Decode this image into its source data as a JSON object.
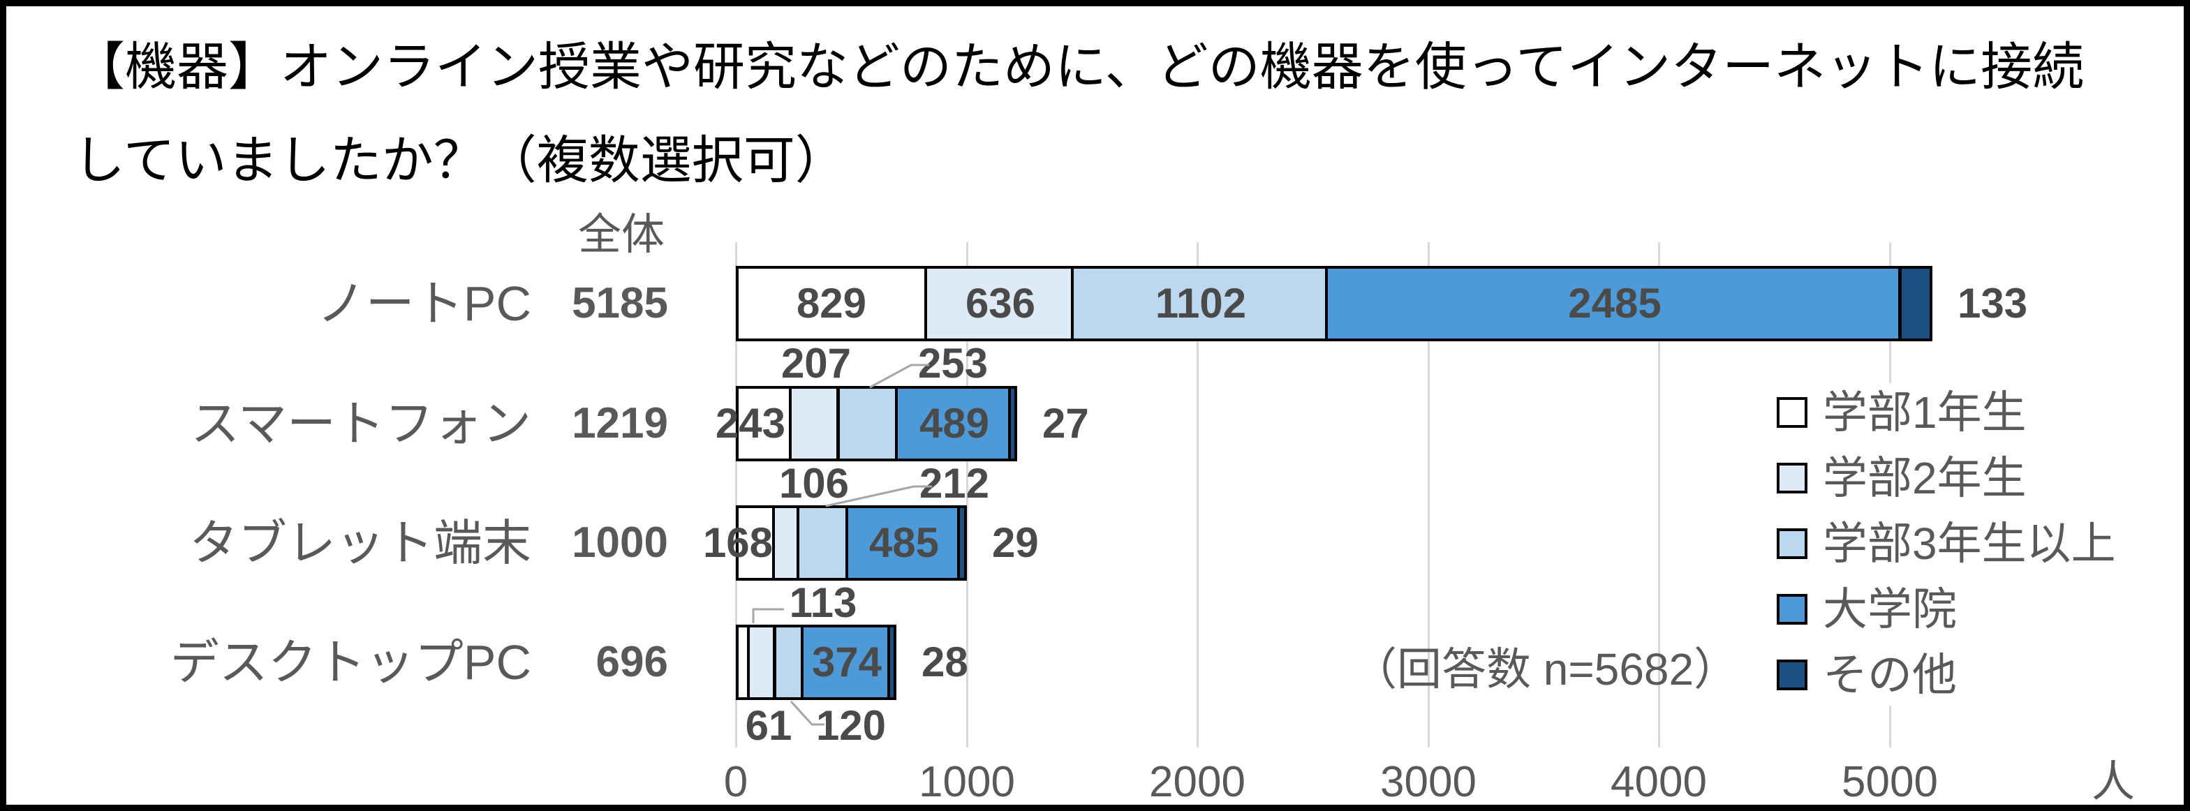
{
  "title": {
    "line1": "【機器】オンライン授業や研究などのために、どの機器を使ってインターネットに接続",
    "line2": "していましたか？（複数選択可）"
  },
  "chart_data": {
    "type": "bar",
    "orientation": "horizontal",
    "stacked": true,
    "title": "【機器】オンライン授業や研究などのために、どの機器を使ってインターネットに接続していましたか？（複数選択可）",
    "categories": [
      "ノートPC",
      "スマートフォン",
      "タブレット端末",
      "デスクトップPC"
    ],
    "totals_header": "全体",
    "totals": [
      5185,
      1219,
      1000,
      696
    ],
    "series": [
      {
        "name": "学部1年生",
        "color": "#FFFFFF",
        "values": [
          829,
          243,
          168,
          61
        ]
      },
      {
        "name": "学部2年生",
        "color": "#DEEBF7",
        "values": [
          636,
          207,
          106,
          113
        ]
      },
      {
        "name": "学部3年生以上",
        "color": "#BDD7EE",
        "values": [
          1102,
          253,
          212,
          120
        ]
      },
      {
        "name": "大学院",
        "color": "#4E9AD8",
        "values": [
          2485,
          489,
          485,
          374
        ]
      },
      {
        "name": "その他",
        "color": "#1C4F82",
        "values": [
          133,
          27,
          29,
          28
        ]
      }
    ],
    "x_ticks": [
      0,
      1000,
      2000,
      3000,
      4000,
      5000
    ],
    "x_unit": "人",
    "xlim": [
      0,
      6000
    ],
    "grid": true,
    "legend_position": "right-inside",
    "annotation": "（回答数 n=5682）"
  },
  "colors": {
    "grid": "#D9D9D9",
    "text": "#595959",
    "data_label": "#4a4a4a",
    "title": "#000000",
    "leader": "#A6A6A6",
    "segment_border": "#000000"
  }
}
